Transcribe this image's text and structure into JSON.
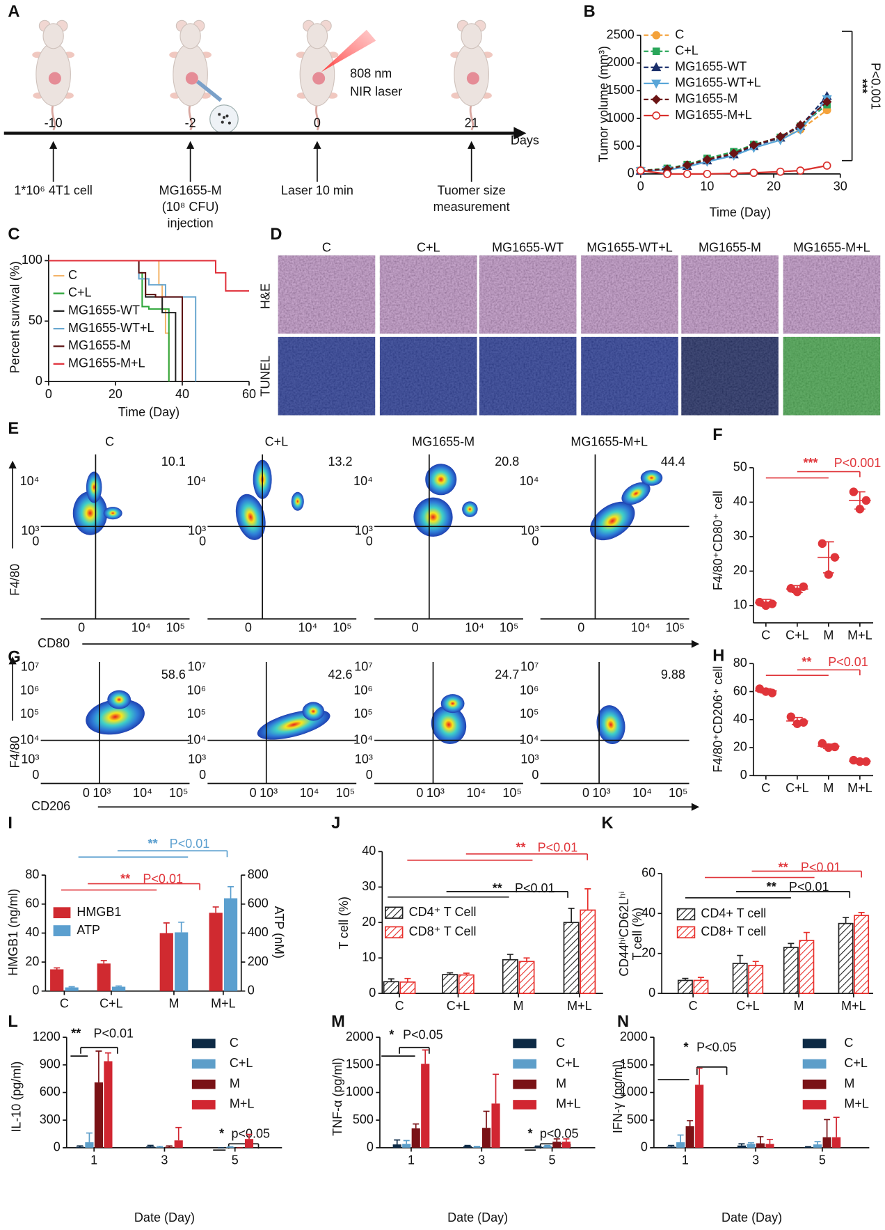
{
  "panel_labels": [
    "A",
    "B",
    "C",
    "D",
    "E",
    "F",
    "G",
    "H",
    "I",
    "J",
    "K",
    "L",
    "M",
    "N"
  ],
  "schematic": {
    "time_points": [
      -10,
      -2,
      0,
      21
    ],
    "time_unit": "Days",
    "laser": [
      "808 nm",
      "NIR laser"
    ],
    "steps": [
      [
        "1*10⁶ 4T1 cell"
      ],
      [
        "MG1655-M",
        "(10⁸ CFU)",
        "injection"
      ],
      [
        "Laser 10 min"
      ],
      [
        "Tuomer size",
        "measurement"
      ]
    ]
  },
  "histology": {
    "columns": [
      "C",
      "C+L",
      "MG1655-WT",
      "MG1655-WT+L",
      "MG1655-M",
      "MG1655-M+L"
    ],
    "rows": [
      "H&E",
      "TUNEL"
    ]
  },
  "flow_cd80": {
    "headers": [
      "C",
      "C+L",
      "MG1655-M",
      "MG1655-M+L"
    ],
    "quadrant_values": [
      10.1,
      13.2,
      20.8,
      44.4
    ],
    "y_ticks": [
      "10⁴",
      "10³",
      "0"
    ],
    "x_ticks": [
      "0",
      "10⁴",
      "10⁵"
    ],
    "y_label": "F4/80",
    "x_label": "CD80"
  },
  "flow_cd206": {
    "quadrant_values": [
      58.6,
      42.6,
      24.7,
      9.88
    ],
    "y_ticks": [
      "10⁷",
      "10⁶",
      "10⁵",
      "10⁴",
      "10³",
      "0"
    ],
    "x_ticks": [
      "0",
      "10³",
      "10⁴",
      "10⁵"
    ],
    "y_label": "F4/80",
    "x_label": "CD206"
  },
  "chart_data": [
    {
      "type": "line",
      "x": [
        0,
        4,
        7,
        10,
        14,
        17,
        21,
        24,
        28
      ],
      "xlim": [
        0,
        30
      ],
      "xticks": [
        0,
        10,
        20,
        30
      ],
      "ylim": [
        0,
        2500
      ],
      "yticks": [
        0,
        500,
        1000,
        1500,
        2000,
        2500
      ],
      "xlabel": "Time (Day)",
      "ylabel": "Tumor volume (mm³)",
      "annotations": [
        "***",
        "P<0.001"
      ],
      "series": [
        {
          "name": "C",
          "color": "#f4a23a",
          "marker": "circle",
          "dashed": true,
          "values": [
            60,
            90,
            150,
            250,
            380,
            520,
            640,
            800,
            1150
          ]
        },
        {
          "name": "C+L",
          "color": "#2aa65a",
          "marker": "square",
          "dashed": true,
          "values": [
            60,
            100,
            170,
            280,
            400,
            530,
            660,
            860,
            1250
          ]
        },
        {
          "name": "MG1655-WT",
          "color": "#1a2f6b",
          "marker": "triangle",
          "dashed": true,
          "values": [
            55,
            80,
            140,
            240,
            350,
            500,
            650,
            860,
            1400
          ]
        },
        {
          "name": "MG1655-WT+L",
          "color": "#5aa6d8",
          "marker": "triangle-down",
          "dashed": false,
          "values": [
            55,
            70,
            130,
            220,
            330,
            470,
            610,
            800,
            1350
          ]
        },
        {
          "name": "MG1655-M",
          "color": "#6b1414",
          "marker": "diamond",
          "dashed": true,
          "values": [
            60,
            85,
            160,
            260,
            370,
            520,
            670,
            880,
            1300
          ]
        },
        {
          "name": "MG1655-M+L",
          "color": "#d9302c",
          "marker": "open-circle",
          "dashed": false,
          "values": [
            60,
            0,
            0,
            0,
            10,
            20,
            40,
            60,
            150
          ]
        }
      ]
    },
    {
      "type": "step",
      "xlim": [
        0,
        60
      ],
      "xticks": [
        0,
        20,
        40,
        60
      ],
      "ylim": [
        0,
        105
      ],
      "yticks": [
        0,
        50,
        100
      ],
      "xlabel": "Time (Day)",
      "ylabel": "Percent survival (%)",
      "series": [
        {
          "name": "C",
          "color": "#f4b46a",
          "x": [
            0,
            33,
            34,
            35,
            36
          ],
          "values": [
            100,
            80,
            60,
            40,
            0
          ]
        },
        {
          "name": "C+L",
          "color": "#2ea63a",
          "x": [
            0,
            27,
            28,
            30,
            36
          ],
          "values": [
            100,
            90,
            62,
            60,
            0
          ]
        },
        {
          "name": "MG1655-WT",
          "color": "#222222",
          "x": [
            0,
            27,
            29,
            34,
            38
          ],
          "values": [
            100,
            85,
            70,
            57,
            0
          ]
        },
        {
          "name": "MG1655-WT+L",
          "color": "#6aa8d0",
          "x": [
            0,
            27,
            30,
            35,
            44
          ],
          "values": [
            100,
            85,
            80,
            70,
            0
          ]
        },
        {
          "name": "MG1655-M",
          "color": "#5a1010",
          "x": [
            0,
            27,
            29,
            32,
            40
          ],
          "values": [
            100,
            90,
            72,
            70,
            0
          ]
        },
        {
          "name": "MG1655-M+L",
          "color": "#e0303a",
          "x": [
            0,
            30,
            50,
            53,
            60
          ],
          "values": [
            100,
            100,
            90,
            75,
            75
          ]
        }
      ]
    },
    {
      "type": "dot",
      "categories": [
        "C",
        "C+L",
        "M",
        "M+L"
      ],
      "points": [
        [
          11,
          10,
          10.5
        ],
        [
          15,
          14,
          15.5
        ],
        [
          28,
          19,
          24
        ],
        [
          43,
          38,
          40.5
        ]
      ],
      "means": [
        10.8,
        14.8,
        24,
        40.5
      ],
      "sd": [
        1,
        1,
        4.5,
        2.5
      ],
      "color": "#e0353a",
      "ylim": [
        5,
        50
      ],
      "yticks": [
        10,
        20,
        30,
        40,
        50
      ],
      "ylabel": "F4/80⁺CD80⁺ cell",
      "annotations": [
        "***",
        "P<0.001"
      ]
    },
    {
      "type": "dot",
      "categories": [
        "C",
        "C+L",
        "M",
        "M+L"
      ],
      "points": [
        [
          62,
          60,
          59
        ],
        [
          42,
          37,
          38
        ],
        [
          23,
          20,
          20.5
        ],
        [
          11,
          10,
          10
        ]
      ],
      "means": [
        60.5,
        39,
        21,
        10.3
      ],
      "sd": [
        1.5,
        2.5,
        1.5,
        0.5
      ],
      "color": "#e0353a",
      "ylim": [
        0,
        80
      ],
      "yticks": [
        0,
        20,
        40,
        60,
        80
      ],
      "ylabel": "F4/80⁺CD206⁺ cell",
      "annotations": [
        "**",
        "P<0.01"
      ]
    },
    {
      "type": "bar",
      "categories": [
        "C",
        "C+L",
        "M",
        "M+L"
      ],
      "ylim": [
        0,
        80
      ],
      "yticks": [
        0,
        20,
        40,
        60,
        80
      ],
      "y2lim": [
        0,
        800
      ],
      "y2ticks": [
        0,
        200,
        400,
        600,
        800
      ],
      "ylabel": "HMGB1 (ng/ml)",
      "y2label": "ATP (nM)",
      "annotations": [
        "**",
        "P<0.01",
        "**",
        "P<0.01"
      ],
      "series": [
        {
          "name": "HMGB1",
          "color": "#d02a30",
          "values": [
            15,
            19,
            40,
            54
          ],
          "errors": [
            1,
            2,
            7,
            4
          ]
        },
        {
          "name": "ATP",
          "color": "#5b9fcf",
          "axis": "y2",
          "values": [
            25,
            30,
            405,
            640
          ],
          "errors": [
            5,
            5,
            70,
            80
          ]
        }
      ]
    },
    {
      "type": "bar",
      "categories": [
        "C",
        "C+L",
        "M",
        "M+L"
      ],
      "ylim": [
        0,
        40
      ],
      "yticks": [
        0,
        10,
        20,
        30,
        40
      ],
      "ylabel": "T cell (%)",
      "annotations": [
        "**",
        "P<0.01",
        "**",
        "P<0.01"
      ],
      "series": [
        {
          "name": "CD4⁺ T Cell",
          "color": "#222222",
          "hatch": true,
          "values": [
            3.3,
            5.3,
            9.5,
            20
          ],
          "errors": [
            0.8,
            0.5,
            1.5,
            4
          ]
        },
        {
          "name": "CD8⁺ T Cell",
          "color": "#e8302c",
          "hatch": true,
          "values": [
            3.2,
            5.2,
            9,
            23.5
          ],
          "errors": [
            1,
            0.5,
            1,
            6
          ]
        }
      ]
    },
    {
      "type": "bar",
      "categories": [
        "C",
        "C+L",
        "M",
        "M+L"
      ],
      "ylim": [
        0,
        60
      ],
      "yticks": [
        0,
        20,
        40,
        60
      ],
      "ylabel": [
        "CD44ʰⁱCD62Lʰⁱ",
        "T cell (%)"
      ],
      "annotations": [
        "**",
        "P<0.01",
        "**",
        "P<0.01"
      ],
      "series": [
        {
          "name": "CD4+ T cell",
          "color": "#222222",
          "hatch": true,
          "values": [
            6.5,
            15,
            23,
            35
          ],
          "errors": [
            1,
            4,
            2,
            3
          ]
        },
        {
          "name": "CD8+ T cell",
          "color": "#e8302c",
          "hatch": true,
          "values": [
            6.5,
            14,
            26.5,
            39
          ],
          "errors": [
            1.5,
            2,
            4,
            1.5
          ]
        }
      ]
    },
    {
      "type": "bar",
      "categories": [
        "1",
        "3",
        "5"
      ],
      "ylim": [
        0,
        1200
      ],
      "yticks": [
        0,
        300,
        600,
        900,
        1200
      ],
      "xlabel": "Date (Day)",
      "ylabel": "IL-10 (pg/ml)",
      "annotations": [
        "**",
        "P<0.01",
        "*",
        "p<0.05"
      ],
      "series": [
        {
          "name": "C",
          "color": "#0d2a45",
          "values": [
            10,
            15,
            0
          ],
          "errors": [
            10,
            10,
            0
          ]
        },
        {
          "name": "C+L",
          "color": "#5d9ec9",
          "values": [
            60,
            5,
            5
          ],
          "errors": [
            100,
            10,
            5
          ]
        },
        {
          "name": "M",
          "color": "#7a1216",
          "values": [
            710,
            10,
            0
          ],
          "errors": [
            340,
            10,
            0
          ]
        },
        {
          "name": "M+L",
          "color": "#d12631",
          "values": [
            940,
            80,
            95
          ],
          "errors": [
            90,
            140,
            50
          ]
        }
      ]
    },
    {
      "type": "bar",
      "categories": [
        "1",
        "3",
        "5"
      ],
      "ylim": [
        0,
        2000
      ],
      "yticks": [
        0,
        500,
        1000,
        1500,
        2000
      ],
      "xlabel": "Date (Day)",
      "ylabel": "TNF-α (pg/ml)",
      "annotations": [
        "*",
        "P<0.05",
        "*",
        "p<0.05"
      ],
      "series": [
        {
          "name": "C",
          "color": "#0d2a45",
          "values": [
            60,
            30,
            20
          ],
          "errors": [
            80,
            10,
            10
          ]
        },
        {
          "name": "C+L",
          "color": "#5d9ec9",
          "values": [
            70,
            15,
            30
          ],
          "errors": [
            60,
            10,
            10
          ]
        },
        {
          "name": "M",
          "color": "#7a1216",
          "values": [
            350,
            360,
            110
          ],
          "errors": [
            80,
            300,
            50
          ]
        },
        {
          "name": "M+L",
          "color": "#d12631",
          "values": [
            1520,
            800,
            110
          ],
          "errors": [
            250,
            530,
            50
          ]
        }
      ]
    },
    {
      "type": "bar",
      "categories": [
        "1",
        "3",
        "5"
      ],
      "ylim": [
        0,
        2000
      ],
      "yticks": [
        0,
        500,
        1000,
        1500,
        2000
      ],
      "xlabel": "Date (Day)",
      "ylabel": "IFN-γ (pg/ml)",
      "annotations": [
        "*",
        "P<0.05"
      ],
      "series": [
        {
          "name": "C",
          "color": "#0d2a45",
          "values": [
            20,
            40,
            10
          ],
          "errors": [
            20,
            30,
            10
          ]
        },
        {
          "name": "C+L",
          "color": "#5d9ec9",
          "values": [
            100,
            70,
            60
          ],
          "errors": [
            130,
            20,
            50
          ]
        },
        {
          "name": "M",
          "color": "#7a1216",
          "values": [
            390,
            80,
            190
          ],
          "errors": [
            100,
            120,
            320
          ]
        },
        {
          "name": "M+L",
          "color": "#d12631",
          "values": [
            1140,
            70,
            190
          ],
          "errors": [
            300,
            80,
            360
          ]
        }
      ]
    }
  ]
}
